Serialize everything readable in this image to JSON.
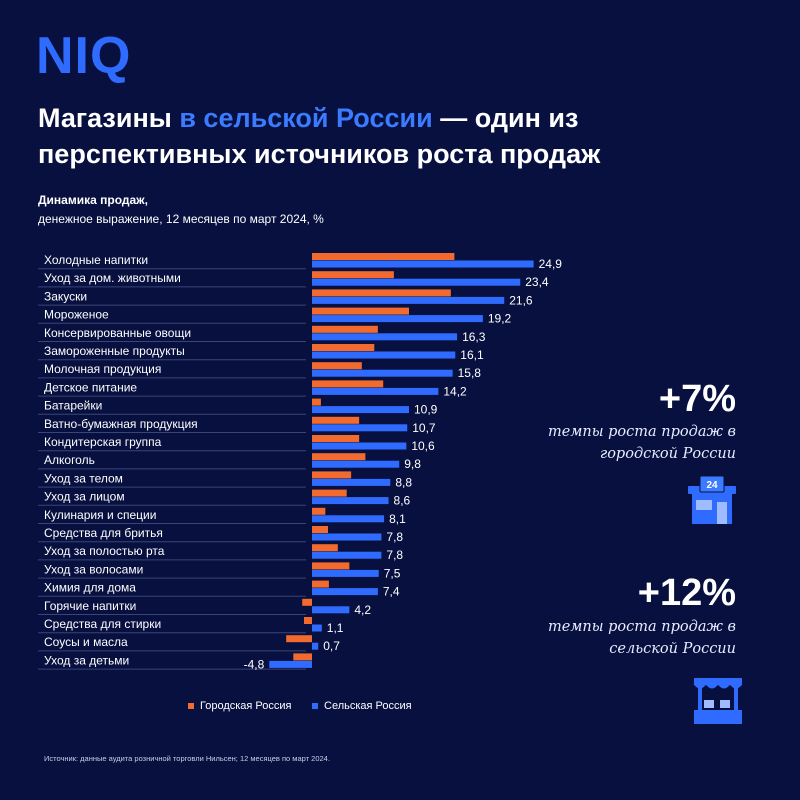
{
  "brand": {
    "logo_text": "NIQ"
  },
  "header": {
    "title_part1": "Магазины ",
    "title_highlight": "в сельской России",
    "title_part2": " — один из перспективных источников роста продаж",
    "subtitle_bold": "Динамика продаж,",
    "subtitle": "денежное выражение, 12 месяцев по март 2024, %"
  },
  "kpis": [
    {
      "value": "+7%",
      "text": "темпы роста продаж в городской России",
      "icon": "urban-store-24-icon"
    },
    {
      "value": "+12%",
      "text": "темпы роста продаж в сельской России",
      "icon": "rural-market-stall-icon"
    }
  ],
  "legend": {
    "urban_label": "Городская Россия",
    "rural_label": "Сельская Россия"
  },
  "source": "Источник: данные аудита розничной торговли Нильсен; 12 месяцев по март 2024.",
  "colors": {
    "background": "#07103f",
    "urban": "#f26a2e",
    "rural": "#2f6bff",
    "accent": "#3b7bff"
  },
  "chart_data": {
    "type": "bar",
    "orientation": "horizontal",
    "categories": [
      "Холодные напитки",
      "Уход за дом. животными",
      "Закуски",
      "Мороженое",
      "Консервированные овощи",
      "Замороженные продукты",
      "Молочная продукция",
      "Детское питание",
      "Батарейки",
      "Ватно-бумажная продукция",
      "Кондитерская группа",
      "Алкоголь",
      "Уход за телом",
      "Уход за лицом",
      "Кулинария и специи",
      "Средства для бритья",
      "Уход за полостью рта",
      "Уход за волосами",
      "Химия для дома",
      "Горячие напитки",
      "Средства для стирки",
      "Соусы и масла",
      "Уход за детьми"
    ],
    "series": [
      {
        "name": "Городская Россия",
        "values": [
          16.0,
          9.2,
          15.6,
          10.9,
          7.4,
          7.0,
          5.6,
          8.0,
          1.0,
          5.3,
          5.3,
          6.0,
          4.4,
          3.9,
          1.5,
          1.8,
          2.9,
          4.2,
          1.9,
          -1.1,
          -0.9,
          -2.9,
          -2.1
        ]
      },
      {
        "name": "Сельская Россия",
        "values": [
          24.9,
          23.4,
          21.6,
          19.2,
          16.3,
          16.1,
          15.8,
          14.2,
          10.9,
          10.7,
          10.6,
          9.8,
          8.8,
          8.6,
          8.1,
          7.8,
          7.8,
          7.5,
          7.4,
          4.2,
          1.1,
          0.7,
          -4.8
        ],
        "labels": [
          "24,9",
          "23,4",
          "21,6",
          "19,2",
          "16,3",
          "16,1",
          "15,8",
          "14,2",
          "10,9",
          "10,7",
          "10,6",
          "9,8",
          "8,8",
          "8,6",
          "8,1",
          "7,8",
          "7,8",
          "7,5",
          "7,4",
          "4,2",
          "1,1",
          "0,7",
          "-4,8"
        ]
      }
    ],
    "legend_position": "bottom",
    "grid": false
  }
}
